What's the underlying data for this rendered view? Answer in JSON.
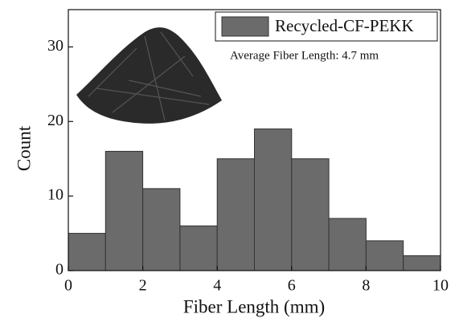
{
  "chart_data": {
    "type": "histogram",
    "xlabel": "Fiber Length (mm)",
    "ylabel": "Count",
    "bins": [
      0,
      1,
      2,
      3,
      4,
      5,
      6,
      7,
      8,
      9,
      10
    ],
    "series": [
      {
        "name": "Recycled-CF-PEKK",
        "color": "#6b6b6b",
        "values": [
          5,
          16,
          11,
          6,
          15,
          19,
          15,
          7,
          4,
          2
        ]
      }
    ],
    "annotation": "Average Fiber Length: 4.7 mm",
    "xlim": [
      0,
      10
    ],
    "xticks": [
      0,
      2,
      4,
      6,
      8,
      10
    ],
    "ylim": [
      0,
      35
    ],
    "yticks": [
      0,
      10,
      20,
      30
    ],
    "legend": "upper right"
  }
}
